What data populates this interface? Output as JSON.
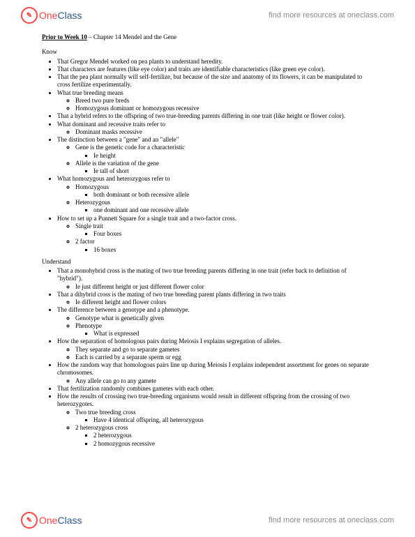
{
  "brand": {
    "name_one": "One",
    "name_class": "Class",
    "link_text": "find more resources at oneclass.com"
  },
  "doc": {
    "title_prior": "Prior to Week 10",
    "title_rest": " – Chapter 14 Mendel and the Gene",
    "know_head": "Know",
    "understand_head": "Understand",
    "know": [
      "That Gregor Mendel worked on pea plants to understand heredity.",
      "That characters are features (like eye color) and traits are identifiable characteristics (like green eye color).",
      "That the pea plant normally will self-fertilize, but because of the size and anatomy of its flowers, it can be manipulated to cross fertilize experimentally.",
      "What true breeding means",
      "That a hybrid refers to the offspring of two true-breeding parents differing in one trait (like height or flower color).",
      "What dominant and recessive traits refer to",
      "The distinction between a \"gene\" and an \"allele\"",
      "What homozygous and heterozygous refer to",
      "How to set up a Punnett Square for a single trait and a two-factor cross."
    ],
    "know_sub": {
      "true_breeding": [
        "Breed two pure breds",
        "Homozygous dominant or homozygous recessive"
      ],
      "dom_rec": [
        "Dominant masks recessive"
      ],
      "gene_allele": {
        "gene": "Gene is the genetic code for a characteristic",
        "gene_ie": "Ie height",
        "allele": "Allele is the variation of the gene",
        "allele_ie": "Ie tall of short"
      },
      "homo_hetero": {
        "homo": "Homozygous",
        "homo_sub": "both dominant or both recessive allele",
        "hetero": "Heterozygous",
        "hetero_sub": "one dominant and one recessive allele"
      },
      "punnett": {
        "single": "Single trait",
        "single_sub": "Four boxes",
        "two": "2 factor",
        "two_sub": "16 boxes"
      }
    },
    "understand": [
      "That a monohybrid cross is the mating of two true breeding parents differing in one trait (refer back to definition of \"hybrid\").",
      "That a dihybrid cross is the mating of two true breeding parent plants differing in two traits",
      "The difference between a genotype and a phenotype.",
      "How the separation of homologous pairs during Meiosis I explains segregation of alleles.",
      "How the random way that homologous pairs line up during Meiosis I explains independent assortment for genes on separate chromosomes.",
      "That fertilization randomly combines gametes with each other.",
      "How the results of crossing two true-breeding organisms would result in different offspring from the crossing of two heterozygotes."
    ],
    "understand_sub": {
      "mono": [
        "Ie just different height or just different flower color"
      ],
      "di": [
        "Ie different height and flower colors"
      ],
      "geno_pheno": {
        "geno": "Genotype what is genetically given",
        "pheno": "Phenotype",
        "pheno_sub": "What is expressed"
      },
      "segregation": [
        "They separate and go to separate gametes",
        "Each is carried by a separate sperm or egg"
      ],
      "independent": [
        "Any allele can go to any gamete"
      ],
      "crossing": {
        "two_true": "Two true breeding cross",
        "two_true_sub": "Have 4 identical offspring, all heterozygous",
        "two_het": "2 heterozygous cross",
        "two_het_sub1": "2 heterozygous",
        "two_het_sub2": "2 homozygous recessive"
      }
    }
  }
}
